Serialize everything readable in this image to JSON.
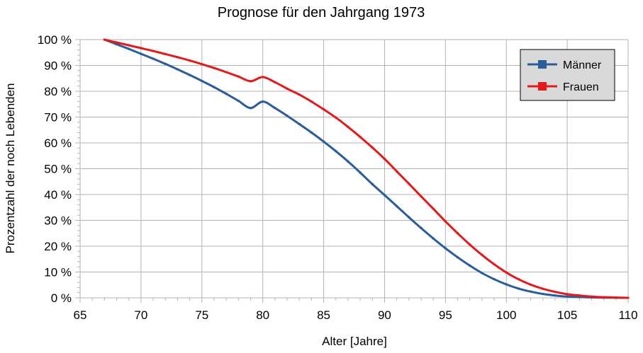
{
  "chart_data": {
    "type": "line",
    "title": "Prognose für den Jahrgang 1973",
    "xlabel": "Alter [Jahre]",
    "ylabel": "Prozentzahl der noch Lebenden",
    "xlim": [
      65,
      110
    ],
    "ylim": [
      0,
      100
    ],
    "x_ticks": [
      65,
      70,
      75,
      80,
      85,
      90,
      95,
      100,
      105,
      110
    ],
    "y_ticks": [
      0,
      10,
      20,
      30,
      40,
      50,
      60,
      70,
      80,
      90,
      100
    ],
    "y_tick_labels": [
      "0 %",
      "10 %",
      "20 %",
      "30 %",
      "40 %",
      "50 %",
      "60 %",
      "70 %",
      "80 %",
      "90 %",
      "100 %"
    ],
    "grid": true,
    "legend_position": "top-right",
    "series": [
      {
        "name": "Männer",
        "color": "#2a5d9a",
        "points": [
          [
            67,
            100
          ],
          [
            68,
            98.2
          ],
          [
            69,
            96.4
          ],
          [
            70,
            94.5
          ],
          [
            71,
            92.6
          ],
          [
            72,
            90.6
          ],
          [
            73,
            88.5
          ],
          [
            74,
            86.3
          ],
          [
            75,
            84
          ],
          [
            76,
            81.6
          ],
          [
            77,
            79
          ],
          [
            78,
            76.3
          ],
          [
            79,
            73.5
          ],
          [
            80,
            76
          ],
          [
            81,
            73.5
          ],
          [
            82,
            70.5
          ],
          [
            83,
            67.3
          ],
          [
            84,
            64
          ],
          [
            85,
            60.5
          ],
          [
            86,
            56.8
          ],
          [
            87,
            52.8
          ],
          [
            88,
            48.5
          ],
          [
            89,
            44
          ],
          [
            90,
            39.8
          ],
          [
            91,
            35.5
          ],
          [
            92,
            31.2
          ],
          [
            93,
            27
          ],
          [
            94,
            23
          ],
          [
            95,
            19.2
          ],
          [
            96,
            15.7
          ],
          [
            97,
            12.5
          ],
          [
            98,
            9.6
          ],
          [
            99,
            7.2
          ],
          [
            100,
            5.2
          ],
          [
            101,
            3.6
          ],
          [
            102,
            2.4
          ],
          [
            103,
            1.5
          ],
          [
            104,
            0.9
          ],
          [
            105,
            0.5
          ],
          [
            106,
            0.3
          ],
          [
            107,
            0.15
          ],
          [
            108,
            0.08
          ],
          [
            109,
            0.03
          ],
          [
            110,
            0
          ]
        ]
      },
      {
        "name": "Frauen",
        "color": "#e31a1c",
        "points": [
          [
            67,
            100
          ],
          [
            68,
            98.9
          ],
          [
            69,
            97.8
          ],
          [
            70,
            96.7
          ],
          [
            71,
            95.6
          ],
          [
            72,
            94.4
          ],
          [
            73,
            93.2
          ],
          [
            74,
            91.9
          ],
          [
            75,
            90.5
          ],
          [
            76,
            89
          ],
          [
            77,
            87.4
          ],
          [
            78,
            85.7
          ],
          [
            79,
            83.9
          ],
          [
            80,
            85.5
          ],
          [
            81,
            83.5
          ],
          [
            82,
            81
          ],
          [
            83,
            78.7
          ],
          [
            84,
            76
          ],
          [
            85,
            73
          ],
          [
            86,
            69.8
          ],
          [
            87,
            66.2
          ],
          [
            88,
            62.3
          ],
          [
            89,
            58.2
          ],
          [
            90,
            53.8
          ],
          [
            91,
            49
          ],
          [
            92,
            44.2
          ],
          [
            93,
            39.3
          ],
          [
            94,
            34.5
          ],
          [
            95,
            29.6
          ],
          [
            96,
            25
          ],
          [
            97,
            20.6
          ],
          [
            98,
            16.6
          ],
          [
            99,
            13
          ],
          [
            100,
            9.8
          ],
          [
            101,
            7.2
          ],
          [
            102,
            5.1
          ],
          [
            103,
            3.5
          ],
          [
            104,
            2.3
          ],
          [
            105,
            1.4
          ],
          [
            106,
            0.9
          ],
          [
            107,
            0.5
          ],
          [
            108,
            0.25
          ],
          [
            109,
            0.1
          ],
          [
            110,
            0
          ]
        ]
      }
    ]
  }
}
